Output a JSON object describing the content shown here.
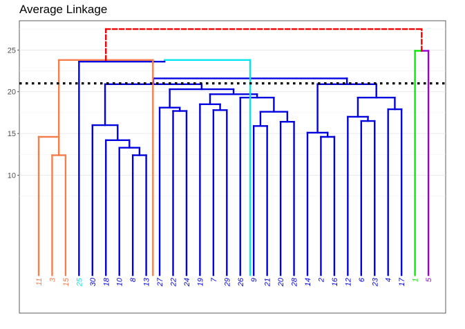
{
  "chart_data": {
    "type": "dendrogram",
    "title": "Average Linkage",
    "ylim": [
      -6.5,
      28.5
    ],
    "y_ticks": [
      10,
      15,
      20,
      25
    ],
    "grid": true,
    "cut_height": 21.0,
    "colors": {
      "orange": "#f47f4c",
      "cyan": "#00e5ee",
      "blue": "#0000e0",
      "green": "#00ee00",
      "purple": "#9a00d6",
      "red": "#ee0000",
      "black": "#000000"
    },
    "leaves": [
      {
        "label": "11",
        "color": "orange"
      },
      {
        "label": "3",
        "color": "orange"
      },
      {
        "label": "15",
        "color": "orange"
      },
      {
        "label": "25",
        "color": "cyan"
      },
      {
        "label": "30",
        "color": "blue"
      },
      {
        "label": "18",
        "color": "blue"
      },
      {
        "label": "10",
        "color": "blue"
      },
      {
        "label": "8",
        "color": "blue"
      },
      {
        "label": "13",
        "color": "blue"
      },
      {
        "label": "27",
        "color": "blue"
      },
      {
        "label": "22",
        "color": "blue"
      },
      {
        "label": "24",
        "color": "blue"
      },
      {
        "label": "19",
        "color": "blue"
      },
      {
        "label": "7",
        "color": "blue"
      },
      {
        "label": "29",
        "color": "blue"
      },
      {
        "label": "26",
        "color": "blue"
      },
      {
        "label": "9",
        "color": "blue"
      },
      {
        "label": "21",
        "color": "blue"
      },
      {
        "label": "20",
        "color": "blue"
      },
      {
        "label": "28",
        "color": "blue"
      },
      {
        "label": "14",
        "color": "blue"
      },
      {
        "label": "2",
        "color": "blue"
      },
      {
        "label": "16",
        "color": "blue"
      },
      {
        "label": "12",
        "color": "blue"
      },
      {
        "label": "6",
        "color": "blue"
      },
      {
        "label": "23",
        "color": "blue"
      },
      {
        "label": "4",
        "color": "blue"
      },
      {
        "label": "17",
        "color": "blue"
      },
      {
        "label": "1",
        "color": "green"
      },
      {
        "label": "5",
        "color": "purple"
      }
    ],
    "merges": [
      {
        "a": 1,
        "b": 2,
        "height": 12.4,
        "color": "orange"
      },
      {
        "a": 0,
        "b": 1.5,
        "height": 14.6,
        "color": "orange"
      },
      {
        "a": 7,
        "b": 8,
        "height": 12.4,
        "color": "blue"
      },
      {
        "a": 6,
        "b": 7.5,
        "height": 13.3,
        "color": "blue"
      },
      {
        "a": 5,
        "b": 6.75,
        "height": 14.2,
        "color": "blue"
      },
      {
        "a": 4,
        "b": 5.875,
        "height": 16.0,
        "color": "blue"
      },
      {
        "a": 10,
        "b": 11,
        "height": 17.7,
        "color": "blue"
      },
      {
        "a": 9,
        "b": 10.5,
        "height": 18.1,
        "color": "blue"
      },
      {
        "a": 13,
        "b": 14,
        "height": 17.8,
        "color": "blue"
      },
      {
        "a": 12,
        "b": 13.5,
        "height": 18.5,
        "color": "blue"
      },
      {
        "a": 16,
        "b": 17,
        "height": 15.9,
        "color": "blue"
      },
      {
        "a": 18,
        "b": 19,
        "height": 16.4,
        "color": "blue"
      },
      {
        "a": 16.5,
        "b": 18.5,
        "height": 17.6,
        "color": "blue"
      },
      {
        "a": 15,
        "b": 17.5,
        "height": 19.3,
        "color": "blue"
      },
      {
        "a": 12.75,
        "b": 16.25,
        "height": 19.7,
        "color": "blue"
      },
      {
        "a": 9.75,
        "b": 14.5,
        "height": 20.3,
        "color": "blue"
      },
      {
        "a": 4.9375,
        "b": 12.125,
        "height": 20.9,
        "color": "blue"
      },
      {
        "a": 21,
        "b": 22,
        "height": 14.6,
        "color": "blue"
      },
      {
        "a": 20,
        "b": 21.5,
        "height": 15.1,
        "color": "blue"
      },
      {
        "a": 24,
        "b": 25,
        "height": 16.5,
        "color": "blue"
      },
      {
        "a": 23,
        "b": 24.5,
        "height": 17.0,
        "color": "blue"
      },
      {
        "a": 26,
        "b": 27,
        "height": 17.9,
        "color": "blue"
      },
      {
        "a": 23.75,
        "b": 26.5,
        "height": 19.3,
        "color": "blue"
      },
      {
        "a": 20.75,
        "b": 25.125,
        "height": 20.9,
        "color": "blue"
      },
      {
        "a": 8.53125,
        "b": 22.9375,
        "height": 21.6,
        "color": "blue"
      },
      {
        "a": 15.734,
        "b": 3,
        "height": 23.8,
        "color": "cyan",
        "height_b": 23.6,
        "color_b": "blue"
      },
      {
        "a": 1.5,
        "b": 8.5,
        "height": 23.8,
        "color": "orange",
        "vert_a_color": "orange"
      },
      {
        "a": 28,
        "b": 29,
        "height": 24.9,
        "color": "green",
        "right_color": "purple"
      },
      {
        "a": 5.0,
        "b": 28.5,
        "height": 27.5,
        "color": "red",
        "dashed": true
      }
    ]
  }
}
